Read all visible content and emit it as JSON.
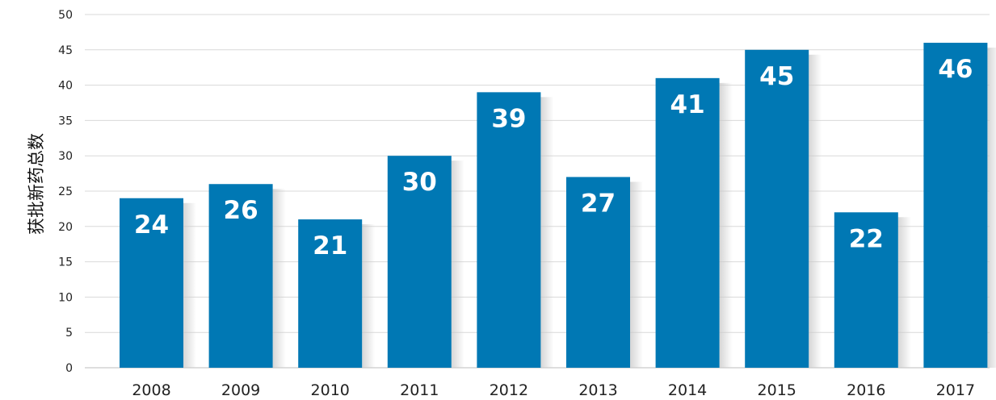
{
  "chart_data": {
    "type": "bar",
    "title": "",
    "xlabel": "",
    "ylabel": "获批新药总数",
    "categories": [
      "2008",
      "2009",
      "2010",
      "2011",
      "2012",
      "2013",
      "2014",
      "2015",
      "2016",
      "2017"
    ],
    "values": [
      24,
      26,
      21,
      30,
      39,
      27,
      41,
      45,
      22,
      46
    ],
    "ylim": [
      0,
      50
    ],
    "yticks": [
      0,
      5,
      10,
      15,
      20,
      25,
      30,
      35,
      40,
      45,
      50
    ],
    "grid": true,
    "legend": "none",
    "data_labels": true,
    "colors": {
      "bar": "#0078b4",
      "grid": "#d9d9d9",
      "shadow": "#c8c8c8"
    }
  }
}
